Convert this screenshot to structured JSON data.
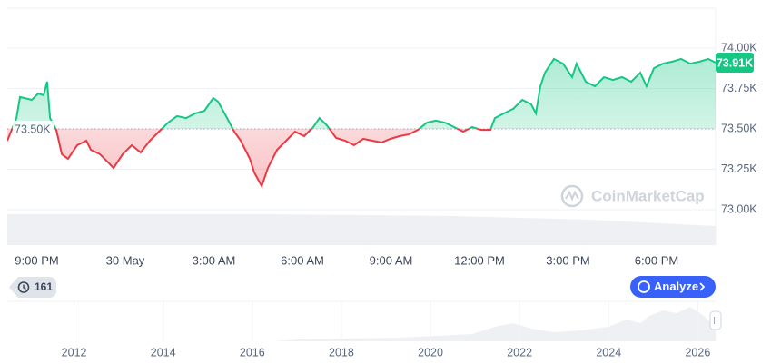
{
  "chart_data": {
    "type": "line",
    "xlim": [
      20,
      44
    ],
    "xticks": [
      {
        "value": 21,
        "label": "9:00 PM"
      },
      {
        "value": 24,
        "label": "30 May"
      },
      {
        "value": 27,
        "label": "3:00 AM"
      },
      {
        "value": 30,
        "label": "6:00 AM"
      },
      {
        "value": 33,
        "label": "9:00 AM"
      },
      {
        "value": 36,
        "label": "12:00 PM"
      },
      {
        "value": 39,
        "label": "3:00 PM"
      },
      {
        "value": 42,
        "label": "6:00 PM"
      }
    ],
    "ylim": [
      73000,
      74250
    ],
    "yticks": [
      {
        "value": 73000,
        "label": "73.00K"
      },
      {
        "value": 73250,
        "label": "73.25K"
      },
      {
        "value": 73500,
        "label": "73.50K"
      },
      {
        "value": 73750,
        "label": "73.75K"
      },
      {
        "value": 74000,
        "label": "74.00K"
      }
    ],
    "grid": true,
    "baseline": {
      "value": 73500,
      "label": "73.50K"
    },
    "current_price": {
      "value": 73910,
      "label": "73.91K"
    },
    "up_color": "#16c784",
    "down_color": "#ea3943",
    "series": [
      {
        "x": [
          20.0,
          20.31,
          20.43,
          20.83,
          21.05,
          21.23,
          21.35,
          21.45,
          21.66,
          21.85,
          22.06,
          22.37,
          22.68,
          22.83,
          23.14,
          23.45,
          23.6,
          23.91,
          24.22,
          24.52,
          24.83,
          25.14,
          25.45,
          25.75,
          26.06,
          26.37,
          26.68,
          26.98,
          27.14,
          27.45,
          27.69,
          27.91,
          28.22,
          28.37,
          28.62,
          28.83,
          29.14,
          29.45,
          29.75,
          30.06,
          30.37,
          30.58,
          30.83,
          31.14,
          31.45,
          31.75,
          32.06,
          32.37,
          32.68,
          32.98,
          33.29,
          33.6,
          33.91,
          34.22,
          34.52,
          34.83,
          35.14,
          35.45,
          35.75,
          36.06,
          36.37,
          36.52,
          36.83,
          37.14,
          37.45,
          37.75,
          37.91,
          38.06,
          38.22,
          38.52,
          38.83,
          39.14,
          39.29,
          39.6,
          39.91,
          40.22,
          40.52,
          40.83,
          41.14,
          41.45,
          41.66,
          41.91,
          42.22,
          42.52,
          42.83,
          43.14,
          43.45,
          43.75,
          44.0
        ],
        "values": [
          73427,
          73567,
          73697,
          73680,
          73719,
          73708,
          73792,
          73567,
          73494,
          73343,
          73315,
          73399,
          73427,
          73371,
          73343,
          73287,
          73258,
          73343,
          73399,
          73354,
          73427,
          73483,
          73539,
          73579,
          73567,
          73596,
          73612,
          73691,
          73669,
          73567,
          73483,
          73427,
          73315,
          73230,
          73146,
          73258,
          73371,
          73427,
          73483,
          73455,
          73511,
          73567,
          73522,
          73444,
          73427,
          73399,
          73438,
          73427,
          73416,
          73438,
          73455,
          73466,
          73494,
          73539,
          73551,
          73539,
          73511,
          73483,
          73511,
          73494,
          73494,
          73567,
          73596,
          73624,
          73680,
          73652,
          73596,
          73764,
          73848,
          73933,
          73904,
          73820,
          73904,
          73792,
          73764,
          73820,
          73803,
          73820,
          73792,
          73848,
          73764,
          73876,
          73904,
          73916,
          73933,
          73904,
          73916,
          73933,
          73910
        ]
      }
    ]
  },
  "watermark": "CoinMarketCap",
  "history_badge": "161",
  "analyze_button": "Analyze",
  "navigator": {
    "xlim": [
      2010.5,
      2026.4
    ],
    "xticks": [
      2012,
      2014,
      2016,
      2018,
      2020,
      2022,
      2024,
      2026
    ]
  }
}
